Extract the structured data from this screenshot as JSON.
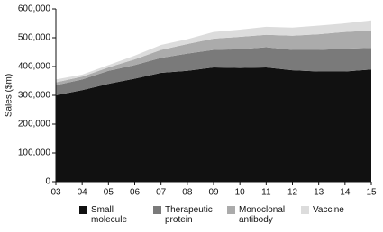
{
  "chart_data": {
    "type": "stacked_area",
    "y_label": "Sales ($m)",
    "categories": [
      "03",
      "04",
      "05",
      "06",
      "07",
      "08",
      "09",
      "10",
      "11",
      "12",
      "13",
      "14",
      "15"
    ],
    "series": [
      {
        "name": "Small molecule",
        "color": "#111111",
        "values": [
          300000,
          318000,
          340000,
          358000,
          378000,
          385000,
          397000,
          395000,
          397000,
          387000,
          383000,
          383000,
          390000
        ]
      },
      {
        "name": "Therapeutic protein",
        "color": "#7a7a7a",
        "values": [
          35000,
          37000,
          45000,
          47000,
          52000,
          60000,
          61000,
          65000,
          70000,
          71000,
          75000,
          79000,
          75000
        ]
      },
      {
        "name": "Monoclonal antibody",
        "color": "#ababab",
        "values": [
          10000,
          10000,
          12000,
          20000,
          28000,
          33000,
          39000,
          43000,
          43000,
          49000,
          54000,
          58000,
          60000
        ]
      },
      {
        "name": "Vaccine",
        "color": "#dcdcdc",
        "values": [
          10000,
          7000,
          8000,
          13000,
          17000,
          17000,
          23000,
          25000,
          28000,
          28000,
          30000,
          30000,
          35000
        ]
      }
    ],
    "ylim": [
      0,
      600000
    ],
    "yticks": [
      0,
      {
        "value": 100000,
        "label": "100,000"
      },
      {
        "value": 200000,
        "label": "200,000"
      },
      {
        "value": 300000,
        "label": "300,000"
      },
      {
        "value": 400000,
        "label": "400,000"
      },
      {
        "value": 500000,
        "label": "500,000"
      },
      {
        "value": 600000,
        "label": "600,000"
      }
    ]
  }
}
